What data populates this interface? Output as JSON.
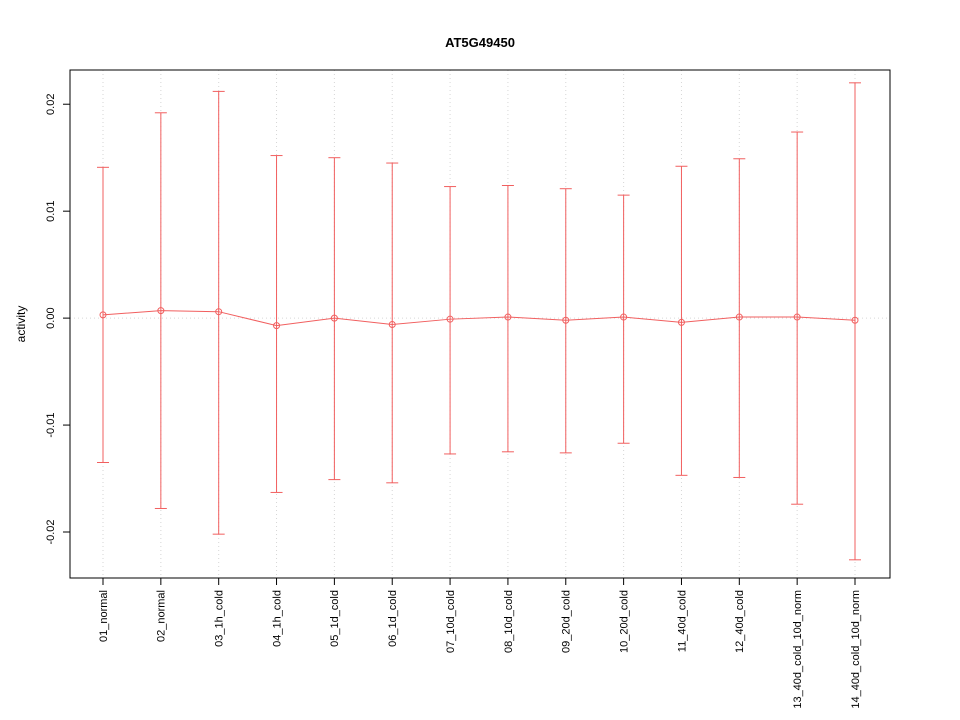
{
  "chart_data": {
    "type": "scatter",
    "title": "AT5G49450",
    "xlabel": "",
    "ylabel": "activity",
    "ylim": [
      -0.0243,
      0.0232
    ],
    "yticks": [
      -0.02,
      -0.01,
      0,
      0.01,
      0.02
    ],
    "ytick_labels": [
      "-0.02",
      "-0.01",
      "0.00",
      "0.01",
      "0.02"
    ],
    "grid": "dotted vertical line at each category, dotted horizontal line at y=0",
    "legend": "none",
    "categories": [
      "01_normal",
      "02_normal",
      "03_1h_cold",
      "04_1h_cold",
      "05_1d_cold",
      "06_1d_cold",
      "07_10d_cold",
      "08_10d_cold",
      "09_20d_cold",
      "10_20d_cold",
      "11_40d_cold",
      "12_40d_cold",
      "13_40d_cold_10d_norm",
      "14_40d_cold_10d_norm"
    ],
    "series": [
      {
        "name": "mean",
        "values": [
          0.0003,
          0.0007,
          0.0006,
          -0.0007,
          0.0,
          -0.0006,
          -0.0001,
          0.0001,
          -0.0002,
          0.0001,
          -0.0004,
          0.0001,
          0.0001,
          -0.0002
        ]
      },
      {
        "name": "upper_error",
        "values": [
          0.0141,
          0.0192,
          0.0212,
          0.0152,
          0.015,
          0.0145,
          0.0123,
          0.0124,
          0.0121,
          0.0115,
          0.0142,
          0.0149,
          0.0174,
          0.022
        ]
      },
      {
        "name": "lower_error",
        "values": [
          -0.0135,
          -0.0178,
          -0.0202,
          -0.0163,
          -0.0151,
          -0.0154,
          -0.0127,
          -0.0125,
          -0.0126,
          -0.0117,
          -0.0147,
          -0.0149,
          -0.0174,
          -0.0226
        ]
      }
    ],
    "colors": {
      "series": "#f15f5f",
      "grid": "#d6d6d6",
      "axis": "#000000"
    }
  }
}
